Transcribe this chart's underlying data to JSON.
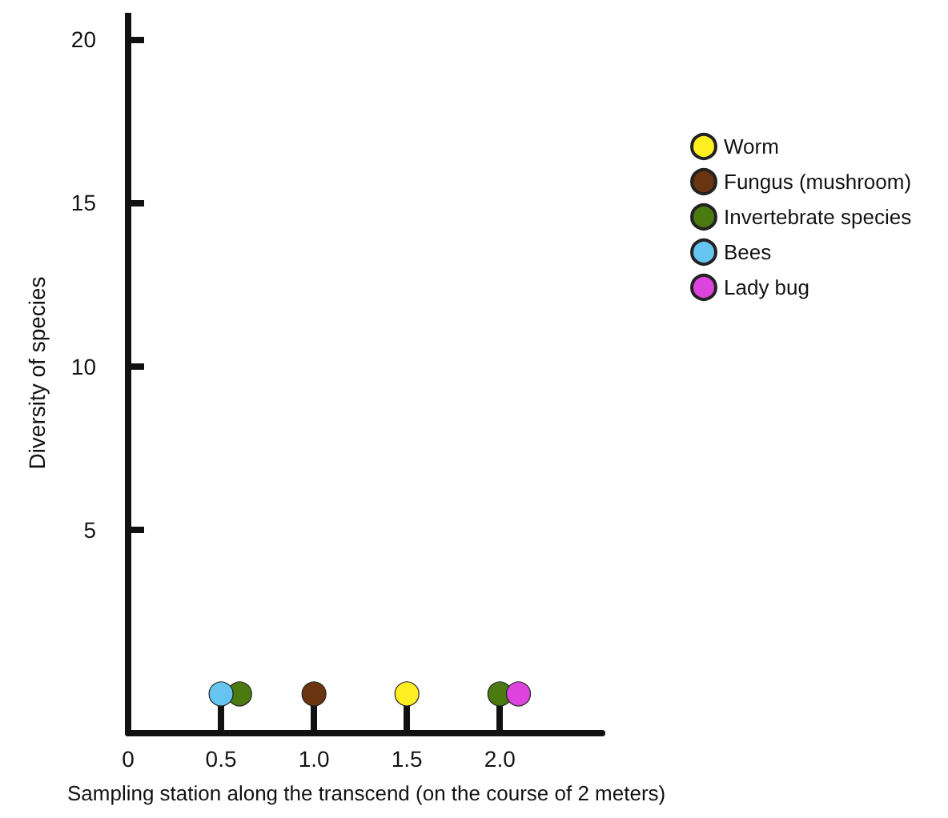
{
  "chart_data": {
    "type": "scatter",
    "xlabel": "Sampling station along the transcend (on the course of 2 meters)",
    "ylabel": "Diversity of species",
    "series": [
      {
        "name": "Worm",
        "color": "#ffee22",
        "x": [
          1.5
        ],
        "values": [
          0
        ]
      },
      {
        "name": "Fungus (mushroom)",
        "color": "#6b3410",
        "x": [
          1.0
        ],
        "values": [
          0
        ]
      },
      {
        "name": "Invertebrate species",
        "color": "#4a7a10",
        "x": [
          0.6,
          2.0
        ],
        "values": [
          0,
          0
        ]
      },
      {
        "name": "Bees",
        "color": "#66c4f0",
        "x": [
          0.5
        ],
        "values": [
          0
        ]
      },
      {
        "name": "Lady bug",
        "color": "#dd44dd",
        "x": [
          2.1
        ],
        "values": [
          0
        ]
      }
    ],
    "xlim": [
      0,
      2.55
    ],
    "ylim": [
      -1.2,
      20.8
    ],
    "xticks": [
      0,
      0.5,
      {
        "value": 1,
        "label": "1.0"
      },
      1.5,
      {
        "value": 2,
        "label": "2.0"
      }
    ],
    "yticks": [
      5,
      10,
      15,
      20
    ],
    "grid": false,
    "legend": "top right",
    "marker": "circle"
  }
}
